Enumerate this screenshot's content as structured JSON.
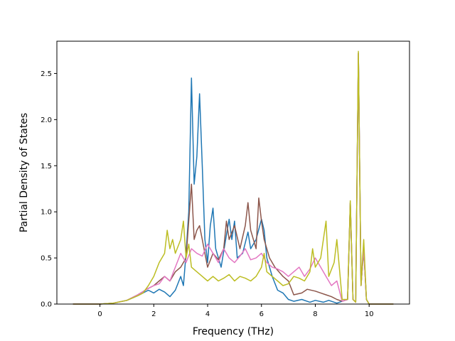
{
  "chart_data": {
    "type": "line",
    "title": "",
    "xlabel": "Frequency (THz)",
    "ylabel": "Partial Density of States",
    "xlim": [
      -1.6,
      11.5
    ],
    "ylim": [
      0,
      2.85
    ],
    "xticks": [
      0,
      2,
      4,
      6,
      8,
      10
    ],
    "xtick_labels": [
      "0",
      "2",
      "4",
      "6",
      "8",
      "10"
    ],
    "yticks": [
      0.0,
      0.5,
      1.0,
      1.5,
      2.0,
      2.5
    ],
    "ytick_labels": [
      "0.0",
      "0.5",
      "1.0",
      "1.5",
      "2.0",
      "2.5"
    ],
    "grid": false,
    "legend": "none",
    "series": [
      {
        "color": "#1f77b4",
        "points": [
          [
            -1.0,
            0
          ],
          [
            0,
            0
          ],
          [
            0.5,
            0.01
          ],
          [
            1,
            0.04
          ],
          [
            1.4,
            0.09
          ],
          [
            1.8,
            0.15
          ],
          [
            2.0,
            0.12
          ],
          [
            2.2,
            0.16
          ],
          [
            2.4,
            0.13
          ],
          [
            2.6,
            0.08
          ],
          [
            2.8,
            0.15
          ],
          [
            3.0,
            0.3
          ],
          [
            3.1,
            0.2
          ],
          [
            3.2,
            0.55
          ],
          [
            3.3,
            1.0
          ],
          [
            3.4,
            2.45
          ],
          [
            3.5,
            1.3
          ],
          [
            3.6,
            1.6
          ],
          [
            3.7,
            2.28
          ],
          [
            3.8,
            1.5
          ],
          [
            3.9,
            0.7
          ],
          [
            4.0,
            0.45
          ],
          [
            4.1,
            0.85
          ],
          [
            4.2,
            1.04
          ],
          [
            4.3,
            0.6
          ],
          [
            4.5,
            0.4
          ],
          [
            4.7,
            0.75
          ],
          [
            4.8,
            0.92
          ],
          [
            4.9,
            0.7
          ],
          [
            5.0,
            0.9
          ],
          [
            5.1,
            0.5
          ],
          [
            5.3,
            0.55
          ],
          [
            5.5,
            0.78
          ],
          [
            5.6,
            0.6
          ],
          [
            5.8,
            0.7
          ],
          [
            6.0,
            0.92
          ],
          [
            6.1,
            0.8
          ],
          [
            6.2,
            0.5
          ],
          [
            6.4,
            0.3
          ],
          [
            6.6,
            0.15
          ],
          [
            6.8,
            0.12
          ],
          [
            7.0,
            0.05
          ],
          [
            7.2,
            0.03
          ],
          [
            7.5,
            0.05
          ],
          [
            7.8,
            0.02
          ],
          [
            8.0,
            0.04
          ],
          [
            8.3,
            0.02
          ],
          [
            8.5,
            0.04
          ],
          [
            8.8,
            0.01
          ],
          [
            9.0,
            0.03
          ],
          [
            9.2,
            0.05
          ],
          [
            9.3,
            1.1
          ],
          [
            9.4,
            0.05
          ],
          [
            9.5,
            0.02
          ],
          [
            9.6,
            2.72
          ],
          [
            9.7,
            0.2
          ],
          [
            9.8,
            0.6
          ],
          [
            9.9,
            0.05
          ],
          [
            10.0,
            0
          ],
          [
            10.9,
            0
          ]
        ]
      },
      {
        "color": "#8c564b",
        "points": [
          [
            -1.0,
            0
          ],
          [
            0,
            0
          ],
          [
            0.5,
            0.01
          ],
          [
            1,
            0.04
          ],
          [
            1.4,
            0.1
          ],
          [
            1.8,
            0.17
          ],
          [
            2.0,
            0.2
          ],
          [
            2.2,
            0.25
          ],
          [
            2.4,
            0.3
          ],
          [
            2.6,
            0.25
          ],
          [
            2.8,
            0.35
          ],
          [
            3.0,
            0.4
          ],
          [
            3.2,
            0.5
          ],
          [
            3.4,
            1.3
          ],
          [
            3.5,
            0.7
          ],
          [
            3.6,
            0.8
          ],
          [
            3.7,
            0.85
          ],
          [
            3.8,
            0.7
          ],
          [
            3.9,
            0.55
          ],
          [
            4.0,
            0.4
          ],
          [
            4.2,
            0.55
          ],
          [
            4.4,
            0.48
          ],
          [
            4.6,
            0.6
          ],
          [
            4.7,
            0.9
          ],
          [
            4.8,
            0.7
          ],
          [
            5.0,
            0.85
          ],
          [
            5.2,
            0.6
          ],
          [
            5.4,
            0.85
          ],
          [
            5.5,
            1.1
          ],
          [
            5.6,
            0.8
          ],
          [
            5.8,
            0.6
          ],
          [
            5.9,
            1.15
          ],
          [
            6.0,
            0.9
          ],
          [
            6.1,
            0.7
          ],
          [
            6.3,
            0.5
          ],
          [
            6.5,
            0.4
          ],
          [
            6.8,
            0.3
          ],
          [
            7.0,
            0.25
          ],
          [
            7.2,
            0.1
          ],
          [
            7.5,
            0.12
          ],
          [
            7.7,
            0.16
          ],
          [
            8.0,
            0.14
          ],
          [
            8.2,
            0.12
          ],
          [
            8.4,
            0.1
          ],
          [
            8.6,
            0.08
          ],
          [
            8.8,
            0.05
          ],
          [
            9.0,
            0.03
          ],
          [
            9.2,
            0.05
          ],
          [
            9.3,
            1.1
          ],
          [
            9.4,
            0.05
          ],
          [
            9.5,
            0.02
          ],
          [
            9.6,
            2.72
          ],
          [
            9.7,
            0.2
          ],
          [
            9.8,
            0.6
          ],
          [
            9.9,
            0.05
          ],
          [
            10.0,
            0
          ],
          [
            10.9,
            0
          ]
        ]
      },
      {
        "color": "#e377c2",
        "points": [
          [
            -1.0,
            0
          ],
          [
            0,
            0
          ],
          [
            0.5,
            0.01
          ],
          [
            1,
            0.04
          ],
          [
            1.4,
            0.1
          ],
          [
            1.8,
            0.17
          ],
          [
            2.0,
            0.2
          ],
          [
            2.2,
            0.22
          ],
          [
            2.4,
            0.3
          ],
          [
            2.6,
            0.25
          ],
          [
            2.8,
            0.4
          ],
          [
            3.0,
            0.55
          ],
          [
            3.2,
            0.45
          ],
          [
            3.4,
            0.6
          ],
          [
            3.6,
            0.55
          ],
          [
            3.8,
            0.52
          ],
          [
            4.0,
            0.65
          ],
          [
            4.2,
            0.55
          ],
          [
            4.4,
            0.45
          ],
          [
            4.6,
            0.6
          ],
          [
            4.8,
            0.5
          ],
          [
            5.0,
            0.45
          ],
          [
            5.2,
            0.52
          ],
          [
            5.4,
            0.6
          ],
          [
            5.6,
            0.48
          ],
          [
            5.8,
            0.5
          ],
          [
            6.0,
            0.55
          ],
          [
            6.2,
            0.45
          ],
          [
            6.4,
            0.4
          ],
          [
            6.6,
            0.38
          ],
          [
            6.8,
            0.35
          ],
          [
            7.0,
            0.3
          ],
          [
            7.2,
            0.35
          ],
          [
            7.4,
            0.4
          ],
          [
            7.6,
            0.3
          ],
          [
            7.8,
            0.38
          ],
          [
            8.0,
            0.5
          ],
          [
            8.2,
            0.4
          ],
          [
            8.4,
            0.3
          ],
          [
            8.6,
            0.2
          ],
          [
            8.8,
            0.25
          ],
          [
            9.0,
            0.03
          ],
          [
            9.2,
            0.05
          ],
          [
            9.3,
            1.1
          ],
          [
            9.4,
            0.05
          ],
          [
            9.5,
            0.02
          ],
          [
            9.6,
            2.72
          ],
          [
            9.7,
            0.2
          ],
          [
            9.8,
            0.6
          ],
          [
            9.9,
            0.05
          ],
          [
            10.0,
            0
          ],
          [
            10.9,
            0
          ]
        ]
      },
      {
        "color": "#bcbd22",
        "points": [
          [
            -1.0,
            0
          ],
          [
            0,
            0
          ],
          [
            0.5,
            0.01
          ],
          [
            1,
            0.04
          ],
          [
            1.4,
            0.09
          ],
          [
            1.6,
            0.12
          ],
          [
            1.8,
            0.2
          ],
          [
            2.0,
            0.3
          ],
          [
            2.2,
            0.45
          ],
          [
            2.4,
            0.55
          ],
          [
            2.5,
            0.8
          ],
          [
            2.6,
            0.6
          ],
          [
            2.7,
            0.7
          ],
          [
            2.8,
            0.55
          ],
          [
            3.0,
            0.7
          ],
          [
            3.1,
            0.9
          ],
          [
            3.2,
            0.5
          ],
          [
            3.3,
            0.65
          ],
          [
            3.4,
            0.4
          ],
          [
            3.6,
            0.35
          ],
          [
            3.8,
            0.3
          ],
          [
            4.0,
            0.25
          ],
          [
            4.2,
            0.3
          ],
          [
            4.4,
            0.25
          ],
          [
            4.6,
            0.28
          ],
          [
            4.8,
            0.32
          ],
          [
            5.0,
            0.25
          ],
          [
            5.2,
            0.3
          ],
          [
            5.4,
            0.28
          ],
          [
            5.6,
            0.25
          ],
          [
            5.8,
            0.3
          ],
          [
            6.0,
            0.4
          ],
          [
            6.1,
            0.55
          ],
          [
            6.2,
            0.35
          ],
          [
            6.4,
            0.3
          ],
          [
            6.6,
            0.25
          ],
          [
            6.8,
            0.2
          ],
          [
            7.0,
            0.22
          ],
          [
            7.2,
            0.3
          ],
          [
            7.4,
            0.28
          ],
          [
            7.6,
            0.25
          ],
          [
            7.8,
            0.35
          ],
          [
            7.9,
            0.6
          ],
          [
            8.0,
            0.4
          ],
          [
            8.2,
            0.5
          ],
          [
            8.4,
            0.9
          ],
          [
            8.5,
            0.3
          ],
          [
            8.7,
            0.45
          ],
          [
            8.8,
            0.7
          ],
          [
            9.0,
            0.05
          ],
          [
            9.2,
            0.05
          ],
          [
            9.3,
            1.12
          ],
          [
            9.4,
            0.05
          ],
          [
            9.5,
            0.02
          ],
          [
            9.6,
            2.74
          ],
          [
            9.7,
            0.2
          ],
          [
            9.8,
            0.7
          ],
          [
            9.9,
            0.05
          ],
          [
            10.0,
            0
          ],
          [
            10.9,
            0
          ]
        ]
      }
    ]
  }
}
